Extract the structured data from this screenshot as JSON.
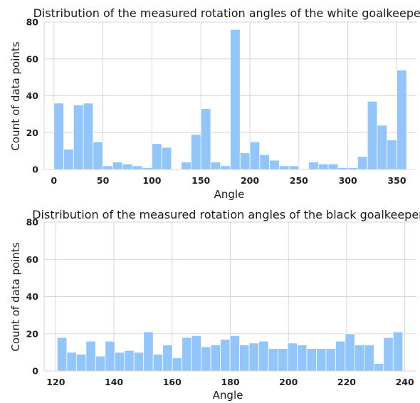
{
  "chart_data": [
    {
      "type": "bar",
      "title": "Distribution of the measured rotation angles of the white goalkeeper",
      "xlabel": "Angle",
      "ylabel": "Count of data points",
      "xlim": [
        -10,
        370
      ],
      "ylim": [
        0,
        80
      ],
      "xticks": [
        0,
        50,
        100,
        150,
        200,
        250,
        300,
        350
      ],
      "yticks": [
        0,
        20,
        40,
        60,
        80
      ],
      "bin_start": 0,
      "bin_width": 10,
      "values": [
        36,
        11,
        35,
        36,
        15,
        2,
        4,
        3,
        2,
        1,
        14,
        12,
        0,
        4,
        19,
        33,
        4,
        2,
        76,
        9,
        15,
        8,
        5,
        2,
        2,
        0,
        4,
        3,
        3,
        1,
        1,
        7,
        37,
        24,
        16,
        54
      ],
      "grid": true,
      "color": "#92c5f9"
    },
    {
      "type": "bar",
      "title": "Distribution of the measured rotation angles of the black goalkeeper",
      "xlabel": "Angle",
      "ylabel": "Count of data points",
      "xlim": [
        116,
        244
      ],
      "ylim": [
        0,
        80
      ],
      "xticks": [
        120,
        140,
        160,
        180,
        200,
        220,
        240
      ],
      "yticks": [
        0,
        20,
        40,
        60,
        80
      ],
      "bin_start": 120.5,
      "bin_width": 3.3,
      "values": [
        18,
        10,
        9,
        16,
        8,
        16,
        10,
        11,
        10,
        21,
        9,
        14,
        7,
        18,
        19,
        13,
        14,
        17,
        19,
        14,
        15,
        16,
        12,
        12,
        15,
        14,
        12,
        12,
        12,
        16,
        20,
        14,
        14,
        4,
        18,
        21
      ],
      "grid": true,
      "color": "#92c5f9"
    }
  ]
}
